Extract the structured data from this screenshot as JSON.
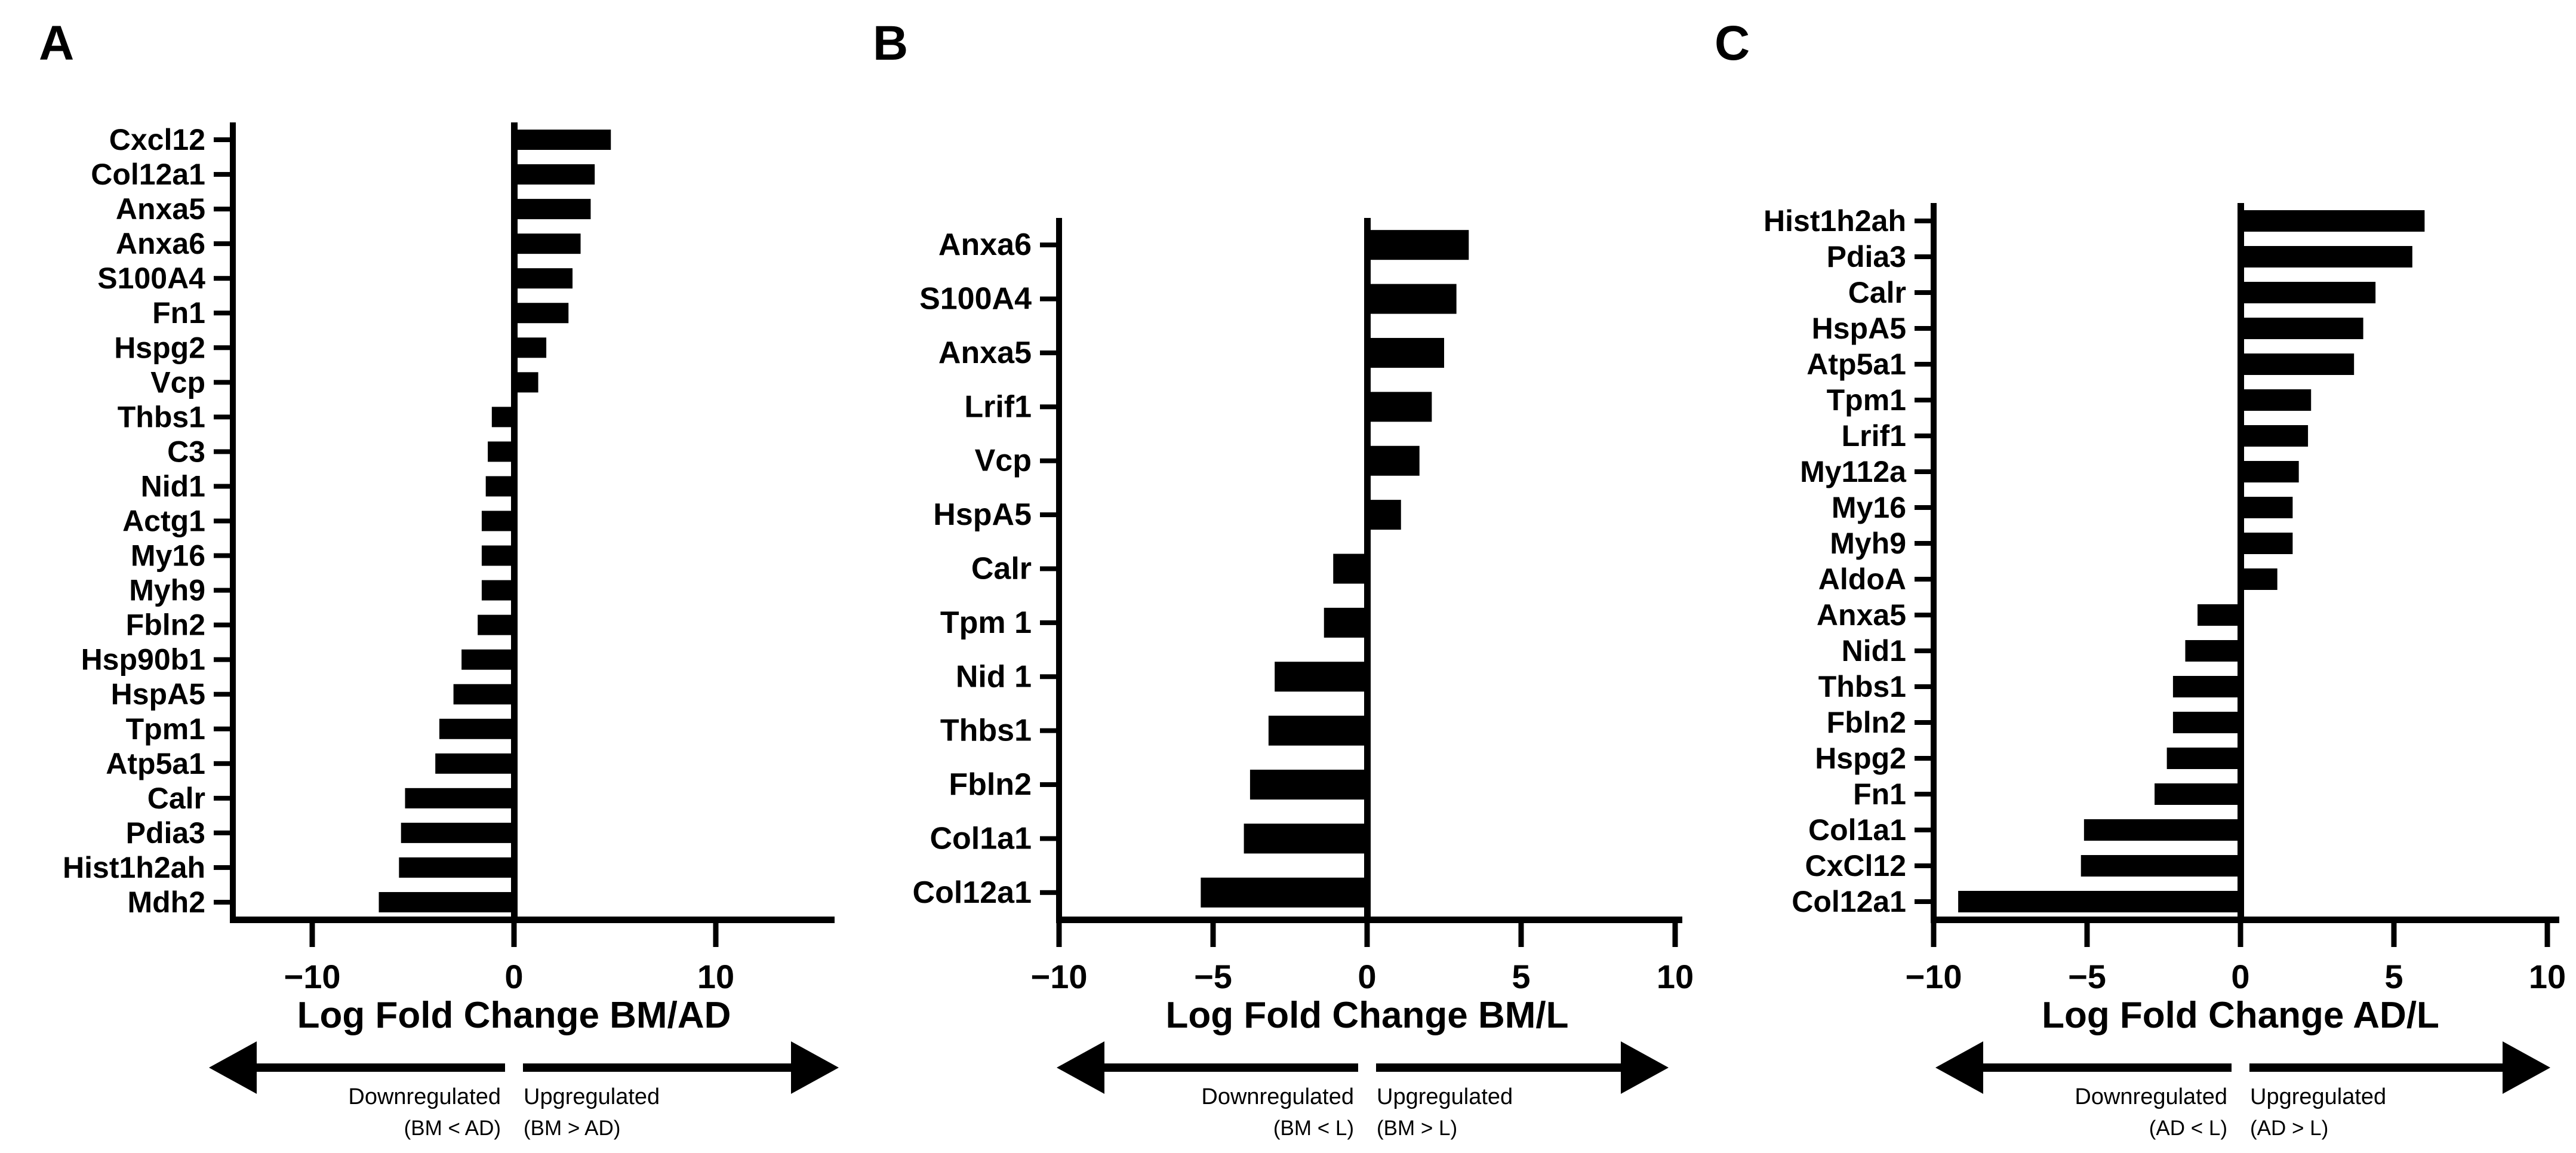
{
  "figure": {
    "background_color": "#ffffff",
    "ink_color": "#000000"
  },
  "chart_data": [
    {
      "panel": "A",
      "type": "bar",
      "orientation": "horizontal",
      "title": "",
      "xlabel": "Log Fold Change BM/AD",
      "ylabel": "",
      "grid": false,
      "legend": "none",
      "bar_color": "#000000",
      "xlim": [
        -14,
        15.9
      ],
      "x_tick_values": [
        -10,
        0,
        10
      ],
      "x_tick_labels": [
        "−10",
        "0",
        "10"
      ],
      "categories": [
        "Cxcl12",
        "Col12a1",
        "Anxa5",
        "Anxa6",
        "S100A4",
        "Fn1",
        "Hspg2",
        "Vcp",
        "Thbs1",
        "C3",
        "Nid1",
        "Actg1",
        "My16",
        "Myh9",
        "Fbln2",
        "Hsp90b1",
        "HspA5",
        "Tpm1",
        "Atp5a1",
        "Calr",
        "Pdia3",
        "Hist1h2ah",
        "Mdh2"
      ],
      "values": [
        4.8,
        4.0,
        3.8,
        3.3,
        2.9,
        2.7,
        1.6,
        1.2,
        -1.1,
        -1.3,
        -1.4,
        -1.6,
        -1.6,
        -1.6,
        -1.8,
        -2.6,
        -3.0,
        -3.7,
        -3.9,
        -5.4,
        -5.6,
        -5.7,
        -6.7
      ],
      "annotations": {
        "down_label": "Downregulated",
        "down_sub": "(BM < AD)",
        "up_label": "Upgregulated",
        "up_sub": "(BM > AD)"
      }
    },
    {
      "panel": "B",
      "type": "bar",
      "orientation": "horizontal",
      "title": "",
      "xlabel": "Log Fold Change BM/L",
      "ylabel": "",
      "grid": false,
      "legend": "none",
      "bar_color": "#000000",
      "xlim": [
        -10,
        10.2
      ],
      "x_tick_values": [
        -10,
        -5,
        0,
        5,
        10
      ],
      "x_tick_labels": [
        "−10",
        "−5",
        "0",
        "5",
        "10"
      ],
      "categories": [
        "Anxa6",
        "S100A4",
        "Anxa5",
        "Lrif1",
        "Vcp",
        "HspA5",
        "Calr",
        "Tpm 1",
        "Nid 1",
        "Thbs1",
        "Fbln2",
        "Col1a1",
        "Col12a1"
      ],
      "values": [
        3.3,
        2.9,
        2.5,
        2.1,
        1.7,
        1.1,
        -1.1,
        -1.4,
        -3.0,
        -3.2,
        -3.8,
        -4.0,
        -5.4
      ],
      "annotations": {
        "down_label": "Downregulated",
        "down_sub": "(BM < L)",
        "up_label": "Upgregulated",
        "up_sub": "(BM > L)"
      }
    },
    {
      "panel": "C",
      "type": "bar",
      "orientation": "horizontal",
      "title": "",
      "xlabel": "Log Fold Change AD/L",
      "ylabel": "",
      "grid": false,
      "legend": "none",
      "bar_color": "#000000",
      "xlim": [
        -10,
        10.4
      ],
      "x_tick_values": [
        -10,
        -5,
        0,
        5,
        10
      ],
      "x_tick_labels": [
        "−10",
        "−5",
        "0",
        "5",
        "10"
      ],
      "categories": [
        "Hist1h2ah",
        "Pdia3",
        "Calr",
        "HspA5",
        "Atp5a1",
        "Tpm1",
        "Lrif1",
        "My112a",
        "My16",
        "Myh9",
        "AldoA",
        "Anxa5",
        "Nid1",
        "Thbs1",
        "Fbln2",
        "Hspg2",
        "Fn1",
        "Col1a1",
        "CxCl12",
        "Col12a1"
      ],
      "values": [
        6.0,
        5.6,
        4.4,
        4.0,
        3.7,
        2.3,
        2.2,
        1.9,
        1.7,
        1.7,
        1.2,
        -1.4,
        -1.8,
        -2.2,
        -2.2,
        -2.4,
        -2.8,
        -5.1,
        -5.2,
        -9.2
      ],
      "annotations": {
        "down_label": "Downregulated",
        "down_sub": "(AD < L)",
        "up_label": "Upgregulated",
        "up_sub": "(AD > L)"
      }
    }
  ]
}
